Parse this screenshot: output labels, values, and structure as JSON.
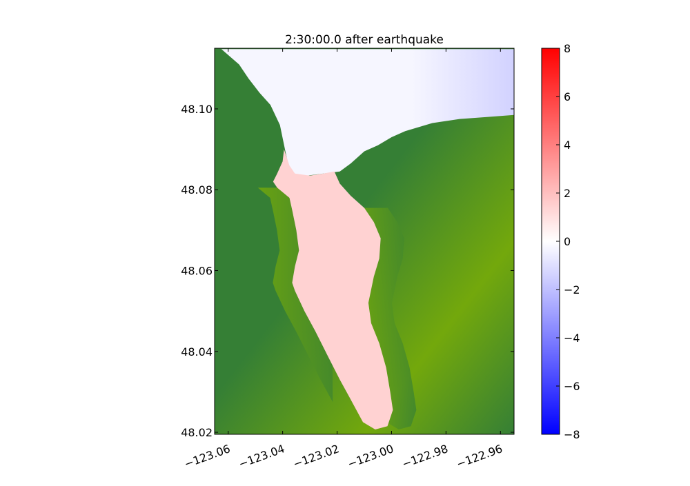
{
  "chart_data": {
    "type": "heatmap",
    "title": "2:30:00.0 after earthquake",
    "xlabel": "",
    "ylabel": "",
    "xlim": [
      -123.065,
      -122.955
    ],
    "ylim": [
      48.0195,
      48.115
    ],
    "x_ticks": [
      {
        "value": -123.06,
        "label": "−123.06"
      },
      {
        "value": -123.04,
        "label": "−123.04"
      },
      {
        "value": -123.02,
        "label": "−123.02"
      },
      {
        "value": -123.0,
        "label": "−123.00"
      },
      {
        "value": -122.98,
        "label": "−122.98"
      },
      {
        "value": -122.96,
        "label": "−122.96"
      }
    ],
    "y_ticks": [
      {
        "value": 48.02,
        "label": "48.02"
      },
      {
        "value": 48.04,
        "label": "48.04"
      },
      {
        "value": 48.06,
        "label": "48.06"
      },
      {
        "value": 48.08,
        "label": "48.08"
      },
      {
        "value": 48.1,
        "label": "48.10"
      }
    ],
    "colorbar": {
      "colormap": "blue-white-red",
      "range": [
        -8,
        8
      ],
      "ticks": [
        {
          "value": 8,
          "label": "8"
        },
        {
          "value": 6,
          "label": "6"
        },
        {
          "value": 4,
          "label": "4"
        },
        {
          "value": 2,
          "label": "2"
        },
        {
          "value": 0,
          "label": "0"
        },
        {
          "value": -2,
          "label": "−2"
        },
        {
          "value": -4,
          "label": "−4"
        },
        {
          "value": -6,
          "label": "−6"
        },
        {
          "value": -8,
          "label": "−8"
        }
      ]
    },
    "colors": {
      "land_dark": "#357f35",
      "land_light": "#73a80c",
      "bay_water": "#ffd2d2",
      "strait_water": "#f6f6ff",
      "strait_water_east": "#d2d2ff",
      "colorbar_max": "#ff0000",
      "colorbar_zero": "#ffffff",
      "colorbar_min": "#0000ff"
    },
    "regions": {
      "strait_outline": [
        [
          -123.0625,
          48.1148
        ],
        [
          -122.955,
          48.1148
        ],
        [
          -122.955,
          48.0985
        ],
        [
          -122.965,
          48.098
        ],
        [
          -122.975,
          48.0975
        ],
        [
          -122.985,
          48.0965
        ],
        [
          -122.995,
          48.0945
        ],
        [
          -123.0,
          48.093
        ],
        [
          -123.005,
          48.091
        ],
        [
          -123.01,
          48.0895
        ],
        [
          -123.015,
          48.0865
        ],
        [
          -123.019,
          48.0845
        ],
        [
          -123.025,
          48.084
        ],
        [
          -123.031,
          48.0835
        ],
        [
          -123.035,
          48.0835
        ],
        [
          -123.0375,
          48.085
        ],
        [
          -123.039,
          48.0895
        ],
        [
          -123.041,
          48.096
        ],
        [
          -123.0445,
          48.101
        ],
        [
          -123.0485,
          48.104
        ],
        [
          -123.0525,
          48.1075
        ],
        [
          -123.056,
          48.111
        ],
        [
          -123.0625,
          48.1148
        ]
      ],
      "bay_outline": [
        [
          -123.0395,
          48.09
        ],
        [
          -123.0375,
          48.086
        ],
        [
          -123.0355,
          48.084
        ],
        [
          -123.03,
          48.0835
        ],
        [
          -123.025,
          48.084
        ],
        [
          -123.021,
          48.0845
        ],
        [
          -123.019,
          48.0815
        ],
        [
          -123.015,
          48.0785
        ],
        [
          -123.01,
          48.0755
        ],
        [
          -123.0065,
          48.072
        ],
        [
          -123.004,
          48.068
        ],
        [
          -123.0045,
          48.063
        ],
        [
          -123.0065,
          48.0585
        ],
        [
          -123.0085,
          48.052
        ],
        [
          -123.0075,
          48.047
        ],
        [
          -123.0045,
          48.042
        ],
        [
          -123.002,
          48.036
        ],
        [
          -123.0005,
          48.03
        ],
        [
          -122.9995,
          48.0255
        ],
        [
          -123.0015,
          48.0215
        ],
        [
          -123.006,
          48.0207
        ],
        [
          -123.0105,
          48.0225
        ],
        [
          -123.0145,
          48.0275
        ],
        [
          -123.019,
          48.033
        ],
        [
          -123.0235,
          48.039
        ],
        [
          -123.028,
          48.045
        ],
        [
          -123.032,
          48.05
        ],
        [
          -123.0355,
          48.055
        ],
        [
          -123.0365,
          48.057
        ],
        [
          -123.0355,
          48.061
        ],
        [
          -123.034,
          48.065
        ],
        [
          -123.035,
          48.07
        ],
        [
          -123.0365,
          48.075
        ],
        [
          -123.0375,
          48.078
        ],
        [
          -123.042,
          48.0805
        ],
        [
          -123.0435,
          48.082
        ],
        [
          -123.042,
          48.084
        ],
        [
          -123.04,
          48.087
        ],
        [
          -123.0395,
          48.09
        ]
      ]
    }
  }
}
